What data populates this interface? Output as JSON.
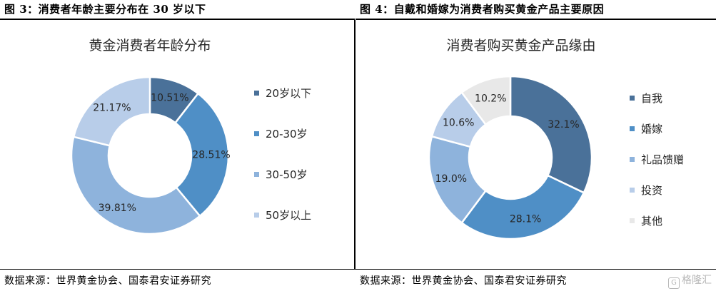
{
  "left": {
    "caption": "图 3：消费者年龄主要分布在 30 岁以下",
    "source": "数据来源：世界黄金协会、国泰君安证券研究"
  },
  "right": {
    "caption": "图 4：自戴和婚嫁为消费者购买黄金产品主要原因",
    "source": "数据来源：世界黄金协会、国泰君安证券研究"
  },
  "watermark": {
    "icon": "G",
    "text": "格隆汇"
  },
  "chart_data": [
    {
      "type": "pie",
      "title": "黄金消费者年龄分布",
      "donut": true,
      "legend_position": "right",
      "categories": [
        "20岁以下",
        "20-30岁",
        "30-50岁",
        "50岁以上"
      ],
      "values": [
        10.51,
        28.51,
        39.81,
        21.17
      ],
      "data_labels": [
        "10.51%",
        "28.51%",
        "39.81%",
        "21.17%"
      ],
      "colors": [
        "#4a7199",
        "#4f8fc6",
        "#8eb3dc",
        "#b8cde9"
      ]
    },
    {
      "type": "pie",
      "title": "消费者购买黄金产品缘由",
      "donut": true,
      "legend_position": "right",
      "categories": [
        "自我",
        "婚嫁",
        "礼品馈赠",
        "投资",
        "其他"
      ],
      "values": [
        32.1,
        28.1,
        19.0,
        10.6,
        10.2
      ],
      "data_labels": [
        "32.1%",
        "28.1%",
        "19.0%",
        "10.6%",
        "10.2%"
      ],
      "colors": [
        "#4a7199",
        "#4f8fc6",
        "#8eb3dc",
        "#b8cde9",
        "#e8e8e8"
      ]
    }
  ]
}
